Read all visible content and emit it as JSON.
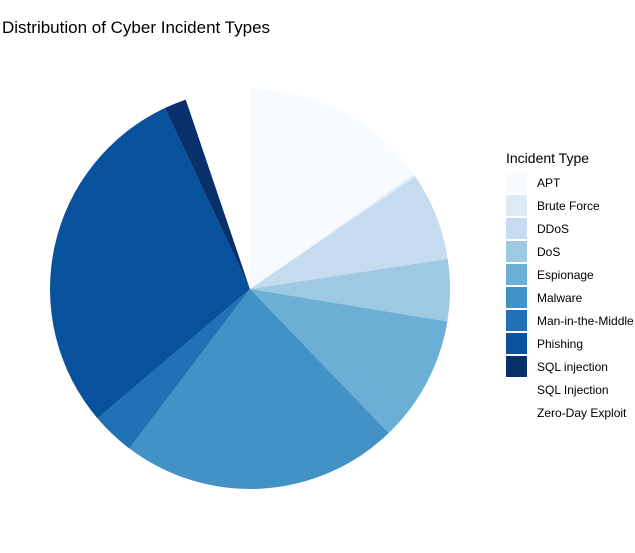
{
  "chart_data": {
    "type": "pie",
    "title": "Distribution of Cyber Incident Types",
    "legend_title": "Incident Type",
    "legend_position": "right",
    "slices": [
      {
        "label": "APT",
        "value": 15.3,
        "color": "#F7FBFF"
      },
      {
        "label": "Brute Force",
        "value": 0.2,
        "color": "#DEEBF7"
      },
      {
        "label": "DDoS",
        "value": 7.1,
        "color": "#C6DBEF"
      },
      {
        "label": "DoS",
        "value": 5.0,
        "color": "#9ECAE1"
      },
      {
        "label": "Espionage",
        "value": 10.2,
        "color": "#6BAED6"
      },
      {
        "label": "Malware",
        "value": 22.5,
        "color": "#4292C6"
      },
      {
        "label": "Man-in-the-Middle",
        "value": 3.5,
        "color": "#2171B5"
      },
      {
        "label": "Phishing",
        "value": 29.2,
        "color": "#08519C"
      },
      {
        "label": "SQL injection",
        "value": 1.8,
        "color": "#08306B"
      },
      {
        "label": "SQL Injection",
        "value": 0,
        "color": "#FFFFFF"
      },
      {
        "label": "Zero-Day Exploit",
        "value": 5.2,
        "color": "#FFFFFF"
      }
    ]
  }
}
